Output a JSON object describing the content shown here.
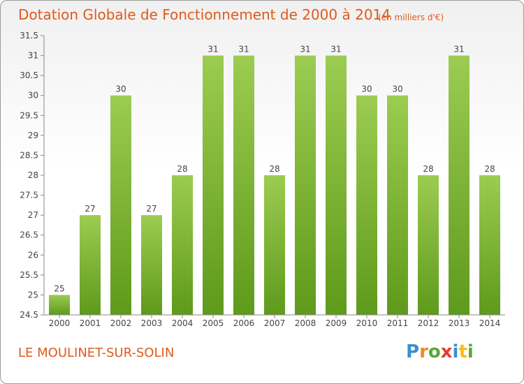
{
  "chart_data": {
    "type": "bar",
    "title": "Dotation Globale de Fonctionnement de 2000 à 2014",
    "subtitle": "(en milliers d'€)",
    "categories": [
      "2000",
      "2001",
      "2002",
      "2003",
      "2004",
      "2005",
      "2006",
      "2007",
      "2008",
      "2009",
      "2010",
      "2011",
      "2012",
      "2013",
      "2014"
    ],
    "values": [
      25,
      27,
      30,
      27,
      28,
      31,
      31,
      28,
      31,
      31,
      30,
      30,
      28,
      31,
      28
    ],
    "value_labels": [
      "25",
      "27",
      "30",
      "27",
      "28",
      "31",
      "31",
      "28",
      "31",
      "31",
      "30",
      "30",
      "28",
      "31",
      "28"
    ],
    "ylim": [
      24.5,
      31.5
    ],
    "yticks": [
      "24.5",
      "25",
      "25.5",
      "26",
      "26.5",
      "27",
      "27.5",
      "28",
      "28.5",
      "29",
      "29.5",
      "30",
      "30.5",
      "31",
      "31.5"
    ],
    "xlabel": "",
    "ylabel": "",
    "grid": false,
    "bar_color": "#7cb83a",
    "bar_color_light": "#9ccc52"
  },
  "location": "LE MOULINET-SUR-SOLIN",
  "logo": {
    "letters": [
      "P",
      "r",
      "o",
      "x",
      "i",
      "t",
      "i"
    ]
  },
  "colors": {
    "title": "#e05a1c",
    "axis": "#888888"
  }
}
